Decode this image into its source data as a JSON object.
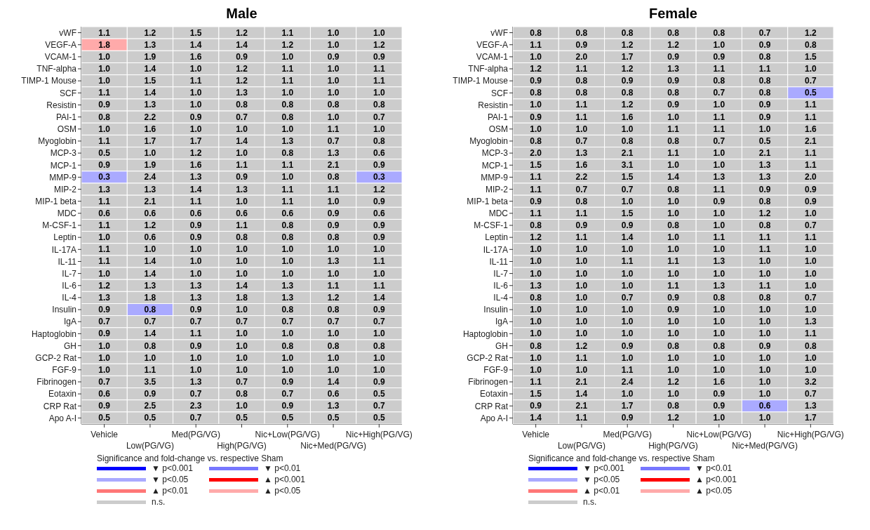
{
  "chart_data": [
    {
      "type": "heatmap",
      "title": "Male",
      "annotations": [
        "Significance and fold-change vs. respective Sham",
        "▼ p<0.001",
        "▼ p<0.01",
        "▼ p<0.05",
        "▲ p<0.001",
        "▲ p<0.01",
        "▲ p<0.05",
        "n.s."
      ],
      "categories": [
        "Vehicle",
        "Low(PG/VG)",
        "Med(PG/VG)",
        "High(PG/VG)",
        "Nic+Low(PG/VG)",
        "Nic+Med(PG/VG)",
        "Nic+High(PG/VG)"
      ],
      "y_categories": [
        "vWF",
        "VEGF-A",
        "VCAM-1",
        "TNF-alpha",
        "TIMP-1 Mouse",
        "SCF",
        "Resistin",
        "PAI-1",
        "OSM",
        "Myoglobin",
        "MCP-3",
        "MCP-1",
        "MMP-9",
        "MIP-2",
        "MIP-1 beta",
        "MDC",
        "M-CSF-1",
        "Leptin",
        "IL-17A",
        "IL-11",
        "IL-7",
        "IL-6",
        "IL-4",
        "Insulin",
        "IgA",
        "Haptoglobin",
        "GH",
        "GCP-2 Rat",
        "FGF-9",
        "Fibrinogen",
        "Eotaxin",
        "CRP Rat",
        "Apo A-I"
      ],
      "cells": [
        [
          1.1,
          1.2,
          1.5,
          1.2,
          1.1,
          1.0,
          1.0
        ],
        [
          1.8,
          1.3,
          1.4,
          1.4,
          1.2,
          1.0,
          1.2
        ],
        [
          1.0,
          1.9,
          1.6,
          0.9,
          1.0,
          0.9,
          0.9
        ],
        [
          1.0,
          1.4,
          1.0,
          1.2,
          1.1,
          1.0,
          1.1
        ],
        [
          1.0,
          1.5,
          1.1,
          1.2,
          1.1,
          1.0,
          1.1
        ],
        [
          1.1,
          1.4,
          1.0,
          1.3,
          1.0,
          1.0,
          1.0
        ],
        [
          0.9,
          1.3,
          1.0,
          0.8,
          0.8,
          0.8,
          0.8
        ],
        [
          0.8,
          2.2,
          0.9,
          0.7,
          0.8,
          1.0,
          0.7
        ],
        [
          1.0,
          1.6,
          1.0,
          1.0,
          1.0,
          1.1,
          1.0
        ],
        [
          1.1,
          1.7,
          1.7,
          1.4,
          1.3,
          0.7,
          0.8
        ],
        [
          0.5,
          1.0,
          1.2,
          1.0,
          0.8,
          1.3,
          0.6
        ],
        [
          0.9,
          1.9,
          1.6,
          1.1,
          1.1,
          2.1,
          0.9
        ],
        [
          0.3,
          2.4,
          1.3,
          0.9,
          1.0,
          0.8,
          0.3
        ],
        [
          1.3,
          1.3,
          1.4,
          1.3,
          1.1,
          1.1,
          1.2
        ],
        [
          1.1,
          2.1,
          1.1,
          1.0,
          1.1,
          1.0,
          0.9
        ],
        [
          0.6,
          0.6,
          0.6,
          0.6,
          0.6,
          0.9,
          0.6
        ],
        [
          1.1,
          1.2,
          0.9,
          1.1,
          0.8,
          0.9,
          0.9
        ],
        [
          1.0,
          0.6,
          0.9,
          0.8,
          0.8,
          0.8,
          0.9
        ],
        [
          1.1,
          1.0,
          1.0,
          1.0,
          1.0,
          1.0,
          1.0
        ],
        [
          1.1,
          1.4,
          1.0,
          1.0,
          1.0,
          1.3,
          1.1
        ],
        [
          1.0,
          1.4,
          1.0,
          1.0,
          1.0,
          1.0,
          1.0
        ],
        [
          1.2,
          1.3,
          1.3,
          1.4,
          1.3,
          1.1,
          1.1
        ],
        [
          1.3,
          1.8,
          1.3,
          1.8,
          1.3,
          1.2,
          1.4
        ],
        [
          0.9,
          0.8,
          0.9,
          1.0,
          0.8,
          0.8,
          0.9
        ],
        [
          0.7,
          0.7,
          0.7,
          0.7,
          0.7,
          0.7,
          0.7
        ],
        [
          0.9,
          1.4,
          1.1,
          1.0,
          1.0,
          1.0,
          1.0
        ],
        [
          1.0,
          0.8,
          0.9,
          1.0,
          0.8,
          0.8,
          0.8
        ],
        [
          1.0,
          1.0,
          1.0,
          1.0,
          1.0,
          1.0,
          1.0
        ],
        [
          1.0,
          1.1,
          1.0,
          1.0,
          1.0,
          1.0,
          1.0
        ],
        [
          0.7,
          3.5,
          1.3,
          0.7,
          0.9,
          1.4,
          0.9
        ],
        [
          0.6,
          0.9,
          0.7,
          0.8,
          0.7,
          0.6,
          0.5
        ],
        [
          0.9,
          2.5,
          2.3,
          1.0,
          0.9,
          1.3,
          0.7
        ],
        [
          0.5,
          0.5,
          0.7,
          0.5,
          0.5,
          0.5,
          0.5
        ]
      ],
      "cell_labels": [
        [
          "1.1",
          "1.2",
          "1.5",
          "1.2",
          "1.1",
          "1.0",
          "1.0"
        ],
        [
          "1.8",
          "1.3",
          "1.4",
          "1.4",
          "1.2",
          "1.0",
          "1.2"
        ],
        [
          "1.0",
          "1.9",
          "1.6",
          "0.9",
          "1.0",
          "0.9",
          "0.9"
        ],
        [
          "1.0",
          "1.4",
          "1.0",
          "1.2",
          "1.1",
          "1.0",
          "1.1"
        ],
        [
          "1.0",
          "1.5",
          "1.1",
          "1.2",
          "1.1",
          "1.0",
          "1.1"
        ],
        [
          "1.1",
          "1.4",
          "1.0",
          "1.3",
          "1.0",
          "1.0",
          "1.0"
        ],
        [
          "0.9",
          "1.3",
          "1.0",
          "0.8",
          "0.8",
          "0.8",
          "0.8"
        ],
        [
          "0.8",
          "2.2",
          "0.9",
          "0.7",
          "0.8",
          "1.0",
          "0.7"
        ],
        [
          "1.0",
          "1.6",
          "1.0",
          "1.0",
          "1.0",
          "1.1",
          "1.0"
        ],
        [
          "1.1",
          "1.7",
          "1.7",
          "1.4",
          "1.3",
          "0.7",
          "0.8"
        ],
        [
          "0.5",
          "1.0",
          "1.2",
          "1.0",
          "0.8",
          "1.3",
          "0.6"
        ],
        [
          "0.9",
          "1.9",
          "1.6",
          "1.1",
          "1.1",
          "2.1",
          "0.9"
        ],
        [
          "0.3",
          "2.4",
          "1.3",
          "0.9",
          "1.0",
          "0.8",
          "0.3"
        ],
        [
          "1.3",
          "1.3",
          "1.4",
          "1.3",
          "1.1",
          "1.1",
          "1.2"
        ],
        [
          "1.1",
          "2.1",
          "1.1",
          "1.0",
          "1.1",
          "1.0",
          "0.9"
        ],
        [
          "0.6",
          "0.6",
          "0.6",
          "0.6",
          "0.6",
          "0.9",
          "0.6"
        ],
        [
          "1.1",
          "1.2",
          "0.9",
          "1.1",
          "0.8",
          "0.9",
          "0.9"
        ],
        [
          "1.0",
          "0.6",
          "0.9",
          "0.8",
          "0.8",
          "0.8",
          "0.9"
        ],
        [
          "1.1",
          "1.0",
          "1.0",
          "1.0",
          "1.0",
          "1.0",
          "1.0"
        ],
        [
          "1.1",
          "1.4",
          "1.0",
          "1.0",
          "1.0",
          "1.3",
          "1.1"
        ],
        [
          "1.0",
          "1.4",
          "1.0",
          "1.0",
          "1.0",
          "1.0",
          "1.0"
        ],
        [
          "1.2",
          "1.3",
          "1.3",
          "1.4",
          "1.3",
          "1.1",
          "1.1"
        ],
        [
          "1.3",
          "1.8",
          "1.3",
          "1.8",
          "1.3",
          "1.2",
          "1.4"
        ],
        [
          "0.9",
          "0.8",
          "0.9",
          "1.0",
          "0.8",
          "0.8",
          "0.9"
        ],
        [
          "0.7",
          "0.7",
          "0.7",
          "0.7",
          "0.7",
          "0.7",
          "0.7"
        ],
        [
          "0.9",
          "1.4",
          "1.1",
          "1.0",
          "1.0",
          "1.0",
          "1.0"
        ],
        [
          "1.0",
          "0.8",
          "0.9",
          "1.0",
          "0.8",
          "0.8",
          "0.8"
        ],
        [
          "1.0",
          "1.0",
          "1.0",
          "1.0",
          "1.0",
          "1.0",
          "1.0"
        ],
        [
          "1.0",
          "1.1",
          "1.0",
          "1.0",
          "1.0",
          "1.0",
          "1.0"
        ],
        [
          "0.7",
          "3.5",
          "1.3",
          "0.7",
          "0.9",
          "1.4",
          "0.9"
        ],
        [
          "0.6",
          "0.9",
          "0.7",
          "0.8",
          "0.7",
          "0.6",
          "0.5"
        ],
        [
          "0.9",
          "2.5",
          "2.3",
          "1.0",
          "0.9",
          "1.3",
          "0.7"
        ],
        [
          "0.5",
          "0.5",
          "0.7",
          "0.5",
          "0.5",
          "0.5",
          "0.5"
        ]
      ],
      "colors": [
        [
          "#cccccc",
          "#cccccc",
          "#cccccc",
          "#cccccc",
          "#cccccc",
          "#cccccc",
          "#cccccc"
        ],
        [
          "#ffaaaa",
          "#cccccc",
          "#cccccc",
          "#cccccc",
          "#cccccc",
          "#cccccc",
          "#cccccc"
        ],
        [
          "#cccccc",
          "#cccccc",
          "#cccccc",
          "#cccccc",
          "#cccccc",
          "#cccccc",
          "#cccccc"
        ],
        [
          "#cccccc",
          "#cccccc",
          "#cccccc",
          "#cccccc",
          "#cccccc",
          "#cccccc",
          "#cccccc"
        ],
        [
          "#cccccc",
          "#cccccc",
          "#cccccc",
          "#cccccc",
          "#cccccc",
          "#cccccc",
          "#cccccc"
        ],
        [
          "#cccccc",
          "#cccccc",
          "#cccccc",
          "#cccccc",
          "#cccccc",
          "#cccccc",
          "#cccccc"
        ],
        [
          "#cccccc",
          "#cccccc",
          "#cccccc",
          "#cccccc",
          "#cccccc",
          "#cccccc",
          "#cccccc"
        ],
        [
          "#cccccc",
          "#cccccc",
          "#cccccc",
          "#cccccc",
          "#cccccc",
          "#cccccc",
          "#cccccc"
        ],
        [
          "#cccccc",
          "#cccccc",
          "#cccccc",
          "#cccccc",
          "#cccccc",
          "#cccccc",
          "#cccccc"
        ],
        [
          "#cccccc",
          "#cccccc",
          "#cccccc",
          "#cccccc",
          "#cccccc",
          "#cccccc",
          "#cccccc"
        ],
        [
          "#cccccc",
          "#cccccc",
          "#cccccc",
          "#cccccc",
          "#cccccc",
          "#cccccc",
          "#cccccc"
        ],
        [
          "#cccccc",
          "#cccccc",
          "#cccccc",
          "#cccccc",
          "#cccccc",
          "#cccccc",
          "#cccccc"
        ],
        [
          "#aaaaff",
          "#cccccc",
          "#cccccc",
          "#cccccc",
          "#cccccc",
          "#cccccc",
          "#aaaaff"
        ],
        [
          "#cccccc",
          "#cccccc",
          "#cccccc",
          "#cccccc",
          "#cccccc",
          "#cccccc",
          "#cccccc"
        ],
        [
          "#cccccc",
          "#cccccc",
          "#cccccc",
          "#cccccc",
          "#cccccc",
          "#cccccc",
          "#cccccc"
        ],
        [
          "#cccccc",
          "#cccccc",
          "#cccccc",
          "#cccccc",
          "#cccccc",
          "#cccccc",
          "#cccccc"
        ],
        [
          "#cccccc",
          "#cccccc",
          "#cccccc",
          "#cccccc",
          "#cccccc",
          "#cccccc",
          "#cccccc"
        ],
        [
          "#cccccc",
          "#cccccc",
          "#cccccc",
          "#cccccc",
          "#cccccc",
          "#cccccc",
          "#cccccc"
        ],
        [
          "#cccccc",
          "#cccccc",
          "#cccccc",
          "#cccccc",
          "#cccccc",
          "#cccccc",
          "#cccccc"
        ],
        [
          "#cccccc",
          "#cccccc",
          "#cccccc",
          "#cccccc",
          "#cccccc",
          "#cccccc",
          "#cccccc"
        ],
        [
          "#cccccc",
          "#cccccc",
          "#cccccc",
          "#cccccc",
          "#cccccc",
          "#cccccc",
          "#cccccc"
        ],
        [
          "#cccccc",
          "#cccccc",
          "#cccccc",
          "#cccccc",
          "#cccccc",
          "#cccccc",
          "#cccccc"
        ],
        [
          "#cccccc",
          "#cccccc",
          "#cccccc",
          "#cccccc",
          "#cccccc",
          "#cccccc",
          "#cccccc"
        ],
        [
          "#cccccc",
          "#aaaaff",
          "#cccccc",
          "#cccccc",
          "#cccccc",
          "#cccccc",
          "#cccccc"
        ],
        [
          "#cccccc",
          "#cccccc",
          "#cccccc",
          "#cccccc",
          "#cccccc",
          "#cccccc",
          "#cccccc"
        ],
        [
          "#cccccc",
          "#cccccc",
          "#cccccc",
          "#cccccc",
          "#cccccc",
          "#cccccc",
          "#cccccc"
        ],
        [
          "#cccccc",
          "#cccccc",
          "#cccccc",
          "#cccccc",
          "#cccccc",
          "#cccccc",
          "#cccccc"
        ],
        [
          "#cccccc",
          "#cccccc",
          "#cccccc",
          "#cccccc",
          "#cccccc",
          "#cccccc",
          "#cccccc"
        ],
        [
          "#cccccc",
          "#cccccc",
          "#cccccc",
          "#cccccc",
          "#cccccc",
          "#cccccc",
          "#cccccc"
        ],
        [
          "#cccccc",
          "#cccccc",
          "#cccccc",
          "#cccccc",
          "#cccccc",
          "#cccccc",
          "#cccccc"
        ],
        [
          "#cccccc",
          "#cccccc",
          "#cccccc",
          "#cccccc",
          "#cccccc",
          "#cccccc",
          "#cccccc"
        ],
        [
          "#cccccc",
          "#cccccc",
          "#cccccc",
          "#cccccc",
          "#cccccc",
          "#cccccc",
          "#cccccc"
        ],
        [
          "#cccccc",
          "#cccccc",
          "#cccccc",
          "#cccccc",
          "#cccccc",
          "#cccccc",
          "#cccccc"
        ]
      ]
    },
    {
      "type": "heatmap",
      "title": "Female",
      "annotations": [
        "Significance and fold-change vs. respective Sham",
        "▼ p<0.001",
        "▼ p<0.01",
        "▼ p<0.05",
        "▲ p<0.001",
        "▲ p<0.01",
        "▲ p<0.05",
        "n.s."
      ],
      "categories": [
        "Vehicle",
        "Low(PG/VG)",
        "Med(PG/VG)",
        "High(PG/VG)",
        "Nic+Low(PG/VG)",
        "Nic+Med(PG/VG)",
        "Nic+High(PG/VG)"
      ],
      "y_categories": [
        "vWF",
        "VEGF-A",
        "VCAM-1",
        "TNF-alpha",
        "TIMP-1 Mouse",
        "SCF",
        "Resistin",
        "PAI-1",
        "OSM",
        "Myoglobin",
        "MCP-3",
        "MCP-1",
        "MMP-9",
        "MIP-2",
        "MIP-1 beta",
        "MDC",
        "M-CSF-1",
        "Leptin",
        "IL-17A",
        "IL-11",
        "IL-7",
        "IL-6",
        "IL-4",
        "Insulin",
        "IgA",
        "Haptoglobin",
        "GH",
        "GCP-2 Rat",
        "FGF-9",
        "Fibrinogen",
        "Eotaxin",
        "CRP Rat",
        "Apo A-I"
      ],
      "cells": [
        [
          0.8,
          0.8,
          0.8,
          0.8,
          0.8,
          0.7,
          1.2
        ],
        [
          1.1,
          0.9,
          1.2,
          1.2,
          1.0,
          0.9,
          0.8
        ],
        [
          1.0,
          2.0,
          1.7,
          0.9,
          0.9,
          0.8,
          1.5
        ],
        [
          1.2,
          1.1,
          1.2,
          1.3,
          1.1,
          1.1,
          1.0
        ],
        [
          0.9,
          0.8,
          0.9,
          0.9,
          0.8,
          0.8,
          0.7
        ],
        [
          0.8,
          0.8,
          0.8,
          0.8,
          0.7,
          0.8,
          0.5
        ],
        [
          1.0,
          1.1,
          1.2,
          0.9,
          1.0,
          0.9,
          1.1
        ],
        [
          0.9,
          1.1,
          1.6,
          1.0,
          1.1,
          0.9,
          1.1
        ],
        [
          1.0,
          1.0,
          1.0,
          1.1,
          1.1,
          1.0,
          1.6
        ],
        [
          0.8,
          0.7,
          0.8,
          0.8,
          0.7,
          0.5,
          2.1
        ],
        [
          2.0,
          1.3,
          2.1,
          1.1,
          1.0,
          2.1,
          1.1
        ],
        [
          1.5,
          1.6,
          3.1,
          1.0,
          1.0,
          1.3,
          1.1
        ],
        [
          1.1,
          2.2,
          1.5,
          1.4,
          1.3,
          1.3,
          2.0
        ],
        [
          1.1,
          0.7,
          0.7,
          0.8,
          1.1,
          0.9,
          0.9
        ],
        [
          0.9,
          0.8,
          1.0,
          1.0,
          0.9,
          0.8,
          0.9
        ],
        [
          1.1,
          1.1,
          1.5,
          1.0,
          1.0,
          1.2,
          1.0
        ],
        [
          0.8,
          0.9,
          0.9,
          0.8,
          1.0,
          0.8,
          0.7
        ],
        [
          1.2,
          1.1,
          1.4,
          1.0,
          1.1,
          1.1,
          1.1
        ],
        [
          1.0,
          1.0,
          1.0,
          1.0,
          1.0,
          1.1,
          1.0
        ],
        [
          1.0,
          1.0,
          1.1,
          1.1,
          1.3,
          1.0,
          1.0
        ],
        [
          1.0,
          1.0,
          1.0,
          1.0,
          1.0,
          1.0,
          1.0
        ],
        [
          1.3,
          1.0,
          1.0,
          1.1,
          1.3,
          1.1,
          1.0
        ],
        [
          0.8,
          1.0,
          0.7,
          0.9,
          0.8,
          0.8,
          0.7
        ],
        [
          1.0,
          1.0,
          1.0,
          0.9,
          1.0,
          1.0,
          1.0
        ],
        [
          1.0,
          1.0,
          1.0,
          1.0,
          1.0,
          1.0,
          1.3
        ],
        [
          1.0,
          1.0,
          1.0,
          1.0,
          1.0,
          1.0,
          1.1
        ],
        [
          0.8,
          1.2,
          0.9,
          0.8,
          0.8,
          0.9,
          0.8
        ],
        [
          1.0,
          1.1,
          1.0,
          1.0,
          1.0,
          1.0,
          1.0
        ],
        [
          1.0,
          1.0,
          1.1,
          1.0,
          1.0,
          1.0,
          1.0
        ],
        [
          1.1,
          2.1,
          2.4,
          1.2,
          1.6,
          1.0,
          3.2
        ],
        [
          1.5,
          1.4,
          1.0,
          1.0,
          0.9,
          1.0,
          0.7
        ],
        [
          0.9,
          2.1,
          1.7,
          0.8,
          0.9,
          0.6,
          1.3
        ],
        [
          1.4,
          1.1,
          0.9,
          1.2,
          1.0,
          1.0,
          1.7
        ]
      ],
      "cell_labels": [
        [
          "0.8",
          "0.8",
          "0.8",
          "0.8",
          "0.8",
          "0.7",
          "1.2"
        ],
        [
          "1.1",
          "0.9",
          "1.2",
          "1.2",
          "1.0",
          "0.9",
          "0.8"
        ],
        [
          "1.0",
          "2.0",
          "1.7",
          "0.9",
          "0.9",
          "0.8",
          "1.5"
        ],
        [
          "1.2",
          "1.1",
          "1.2",
          "1.3",
          "1.1",
          "1.1",
          "1.0"
        ],
        [
          "0.9",
          "0.8",
          "0.9",
          "0.9",
          "0.8",
          "0.8",
          "0.7"
        ],
        [
          "0.8",
          "0.8",
          "0.8",
          "0.8",
          "0.7",
          "0.8",
          "0.5"
        ],
        [
          "1.0",
          "1.1",
          "1.2",
          "0.9",
          "1.0",
          "0.9",
          "1.1"
        ],
        [
          "0.9",
          "1.1",
          "1.6",
          "1.0",
          "1.1",
          "0.9",
          "1.1"
        ],
        [
          "1.0",
          "1.0",
          "1.0",
          "1.1",
          "1.1",
          "1.0",
          "1.6"
        ],
        [
          "0.8",
          "0.7",
          "0.8",
          "0.8",
          "0.7",
          "0.5",
          "2.1"
        ],
        [
          "2.0",
          "1.3",
          "2.1",
          "1.1",
          "1.0",
          "2.1",
          "1.1"
        ],
        [
          "1.5",
          "1.6",
          "3.1",
          "1.0",
          "1.0",
          "1.3",
          "1.1"
        ],
        [
          "1.1",
          "2.2",
          "1.5",
          "1.4",
          "1.3",
          "1.3",
          "2.0"
        ],
        [
          "1.1",
          "0.7",
          "0.7",
          "0.8",
          "1.1",
          "0.9",
          "0.9"
        ],
        [
          "0.9",
          "0.8",
          "1.0",
          "1.0",
          "0.9",
          "0.8",
          "0.9"
        ],
        [
          "1.1",
          "1.1",
          "1.5",
          "1.0",
          "1.0",
          "1.2",
          "1.0"
        ],
        [
          "0.8",
          "0.9",
          "0.9",
          "0.8",
          "1.0",
          "0.8",
          "0.7"
        ],
        [
          "1.2",
          "1.1",
          "1.4",
          "1.0",
          "1.1",
          "1.1",
          "1.1"
        ],
        [
          "1.0",
          "1.0",
          "1.0",
          "1.0",
          "1.0",
          "1.1",
          "1.0"
        ],
        [
          "1.0",
          "1.0",
          "1.1",
          "1.1",
          "1.3",
          "1.0",
          "1.0"
        ],
        [
          "1.0",
          "1.0",
          "1.0",
          "1.0",
          "1.0",
          "1.0",
          "1.0"
        ],
        [
          "1.3",
          "1.0",
          "1.0",
          "1.1",
          "1.3",
          "1.1",
          "1.0"
        ],
        [
          "0.8",
          "1.0",
          "0.7",
          "0.9",
          "0.8",
          "0.8",
          "0.7"
        ],
        [
          "1.0",
          "1.0",
          "1.0",
          "0.9",
          "1.0",
          "1.0",
          "1.0"
        ],
        [
          "1.0",
          "1.0",
          "1.0",
          "1.0",
          "1.0",
          "1.0",
          "1.3"
        ],
        [
          "1.0",
          "1.0",
          "1.0",
          "1.0",
          "1.0",
          "1.0",
          "1.1"
        ],
        [
          "0.8",
          "1.2",
          "0.9",
          "0.8",
          "0.8",
          "0.9",
          "0.8"
        ],
        [
          "1.0",
          "1.1",
          "1.0",
          "1.0",
          "1.0",
          "1.0",
          "1.0"
        ],
        [
          "1.0",
          "1.0",
          "1.1",
          "1.0",
          "1.0",
          "1.0",
          "1.0"
        ],
        [
          "1.1",
          "2.1",
          "2.4",
          "1.2",
          "1.6",
          "1.0",
          "3.2"
        ],
        [
          "1.5",
          "1.4",
          "1.0",
          "1.0",
          "0.9",
          "1.0",
          "0.7"
        ],
        [
          "0.9",
          "2.1",
          "1.7",
          "0.8",
          "0.9",
          "0.6",
          "1.3"
        ],
        [
          "1.4",
          "1.1",
          "0.9",
          "1.2",
          "1.0",
          "1.0",
          "1.7"
        ]
      ],
      "colors": [
        [
          "#cccccc",
          "#cccccc",
          "#cccccc",
          "#cccccc",
          "#cccccc",
          "#cccccc",
          "#cccccc"
        ],
        [
          "#cccccc",
          "#cccccc",
          "#cccccc",
          "#cccccc",
          "#cccccc",
          "#cccccc",
          "#cccccc"
        ],
        [
          "#cccccc",
          "#cccccc",
          "#cccccc",
          "#cccccc",
          "#cccccc",
          "#cccccc",
          "#cccccc"
        ],
        [
          "#cccccc",
          "#cccccc",
          "#cccccc",
          "#cccccc",
          "#cccccc",
          "#cccccc",
          "#cccccc"
        ],
        [
          "#cccccc",
          "#cccccc",
          "#cccccc",
          "#cccccc",
          "#cccccc",
          "#cccccc",
          "#cccccc"
        ],
        [
          "#cccccc",
          "#cccccc",
          "#cccccc",
          "#cccccc",
          "#cccccc",
          "#cccccc",
          "#aaaaff"
        ],
        [
          "#cccccc",
          "#cccccc",
          "#cccccc",
          "#cccccc",
          "#cccccc",
          "#cccccc",
          "#cccccc"
        ],
        [
          "#cccccc",
          "#cccccc",
          "#cccccc",
          "#cccccc",
          "#cccccc",
          "#cccccc",
          "#cccccc"
        ],
        [
          "#cccccc",
          "#cccccc",
          "#cccccc",
          "#cccccc",
          "#cccccc",
          "#cccccc",
          "#cccccc"
        ],
        [
          "#cccccc",
          "#cccccc",
          "#cccccc",
          "#cccccc",
          "#cccccc",
          "#cccccc",
          "#cccccc"
        ],
        [
          "#cccccc",
          "#cccccc",
          "#cccccc",
          "#cccccc",
          "#cccccc",
          "#cccccc",
          "#cccccc"
        ],
        [
          "#cccccc",
          "#cccccc",
          "#cccccc",
          "#cccccc",
          "#cccccc",
          "#cccccc",
          "#cccccc"
        ],
        [
          "#cccccc",
          "#cccccc",
          "#cccccc",
          "#cccccc",
          "#cccccc",
          "#cccccc",
          "#cccccc"
        ],
        [
          "#cccccc",
          "#cccccc",
          "#cccccc",
          "#cccccc",
          "#cccccc",
          "#cccccc",
          "#cccccc"
        ],
        [
          "#cccccc",
          "#cccccc",
          "#cccccc",
          "#cccccc",
          "#cccccc",
          "#cccccc",
          "#cccccc"
        ],
        [
          "#cccccc",
          "#cccccc",
          "#cccccc",
          "#cccccc",
          "#cccccc",
          "#cccccc",
          "#cccccc"
        ],
        [
          "#cccccc",
          "#cccccc",
          "#cccccc",
          "#cccccc",
          "#cccccc",
          "#cccccc",
          "#cccccc"
        ],
        [
          "#cccccc",
          "#cccccc",
          "#cccccc",
          "#cccccc",
          "#cccccc",
          "#cccccc",
          "#cccccc"
        ],
        [
          "#cccccc",
          "#cccccc",
          "#cccccc",
          "#cccccc",
          "#cccccc",
          "#cccccc",
          "#cccccc"
        ],
        [
          "#cccccc",
          "#cccccc",
          "#cccccc",
          "#cccccc",
          "#cccccc",
          "#cccccc",
          "#cccccc"
        ],
        [
          "#cccccc",
          "#cccccc",
          "#cccccc",
          "#cccccc",
          "#cccccc",
          "#cccccc",
          "#cccccc"
        ],
        [
          "#cccccc",
          "#cccccc",
          "#cccccc",
          "#cccccc",
          "#cccccc",
          "#cccccc",
          "#cccccc"
        ],
        [
          "#cccccc",
          "#cccccc",
          "#cccccc",
          "#cccccc",
          "#cccccc",
          "#cccccc",
          "#cccccc"
        ],
        [
          "#cccccc",
          "#cccccc",
          "#cccccc",
          "#cccccc",
          "#cccccc",
          "#cccccc",
          "#cccccc"
        ],
        [
          "#cccccc",
          "#cccccc",
          "#cccccc",
          "#cccccc",
          "#cccccc",
          "#cccccc",
          "#cccccc"
        ],
        [
          "#cccccc",
          "#cccccc",
          "#cccccc",
          "#cccccc",
          "#cccccc",
          "#cccccc",
          "#cccccc"
        ],
        [
          "#cccccc",
          "#cccccc",
          "#cccccc",
          "#cccccc",
          "#cccccc",
          "#cccccc",
          "#cccccc"
        ],
        [
          "#cccccc",
          "#cccccc",
          "#cccccc",
          "#cccccc",
          "#cccccc",
          "#cccccc",
          "#cccccc"
        ],
        [
          "#cccccc",
          "#cccccc",
          "#cccccc",
          "#cccccc",
          "#cccccc",
          "#cccccc",
          "#cccccc"
        ],
        [
          "#cccccc",
          "#cccccc",
          "#cccccc",
          "#cccccc",
          "#cccccc",
          "#cccccc",
          "#cccccc"
        ],
        [
          "#cccccc",
          "#cccccc",
          "#cccccc",
          "#cccccc",
          "#cccccc",
          "#cccccc",
          "#cccccc"
        ],
        [
          "#cccccc",
          "#cccccc",
          "#cccccc",
          "#cccccc",
          "#cccccc",
          "#aaaaff",
          "#cccccc"
        ],
        [
          "#cccccc",
          "#cccccc",
          "#cccccc",
          "#cccccc",
          "#cccccc",
          "#cccccc",
          "#cccccc"
        ]
      ]
    }
  ]
}
